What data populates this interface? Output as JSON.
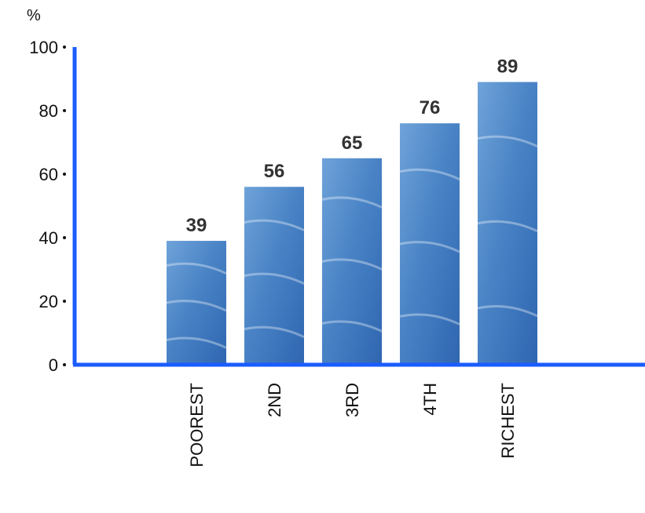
{
  "chart_data": {
    "type": "bar",
    "ylabel": "%",
    "ylim": [
      0,
      100
    ],
    "yticks": [
      0,
      20,
      40,
      60,
      80,
      100
    ],
    "categories": [
      "POOREST",
      "2ND",
      "3RD",
      "4TH",
      "RICHEST"
    ],
    "values": [
      39,
      56,
      65,
      76,
      89
    ],
    "data_labels": [
      "39",
      "56",
      "65",
      "76",
      "89"
    ],
    "grid": false,
    "legend": "none",
    "colors": {
      "axis": "#1a5cff",
      "bar_light": "#6fa3d9",
      "bar_mid": "#4a84c6",
      "bar_dark": "#2f66b0",
      "text": "#111111",
      "value_text": "#333333"
    }
  }
}
